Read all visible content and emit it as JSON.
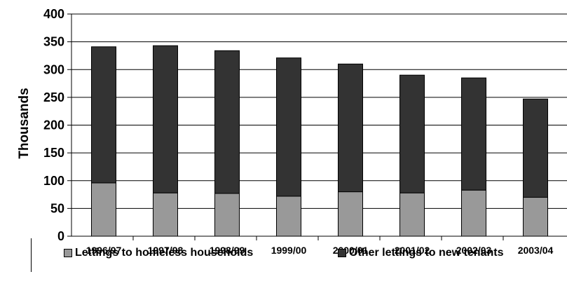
{
  "chart_data": {
    "type": "bar",
    "stacked": true,
    "categories": [
      "1996/97",
      "1997/98",
      "1998/99",
      "1999/00",
      "2000/01",
      "2001/02",
      "2002/03",
      "2003/04"
    ],
    "series": [
      {
        "name": "Lettings to homeless households",
        "values": [
          96,
          78,
          77,
          72,
          80,
          78,
          83,
          70
        ],
        "color": "#999999"
      },
      {
        "name": "Other lettings to new tenants",
        "values": [
          245,
          265,
          257,
          249,
          230,
          212,
          202,
          177
        ],
        "color": "#333333"
      }
    ],
    "totals": [
      341,
      343,
      334,
      321,
      310,
      290,
      285,
      247
    ],
    "ylabel": "Thousands",
    "ylim": [
      0,
      400
    ],
    "yticks": [
      0,
      50,
      100,
      150,
      200,
      250,
      300,
      350,
      400
    ],
    "grid": true,
    "legend_position": "bottom"
  }
}
